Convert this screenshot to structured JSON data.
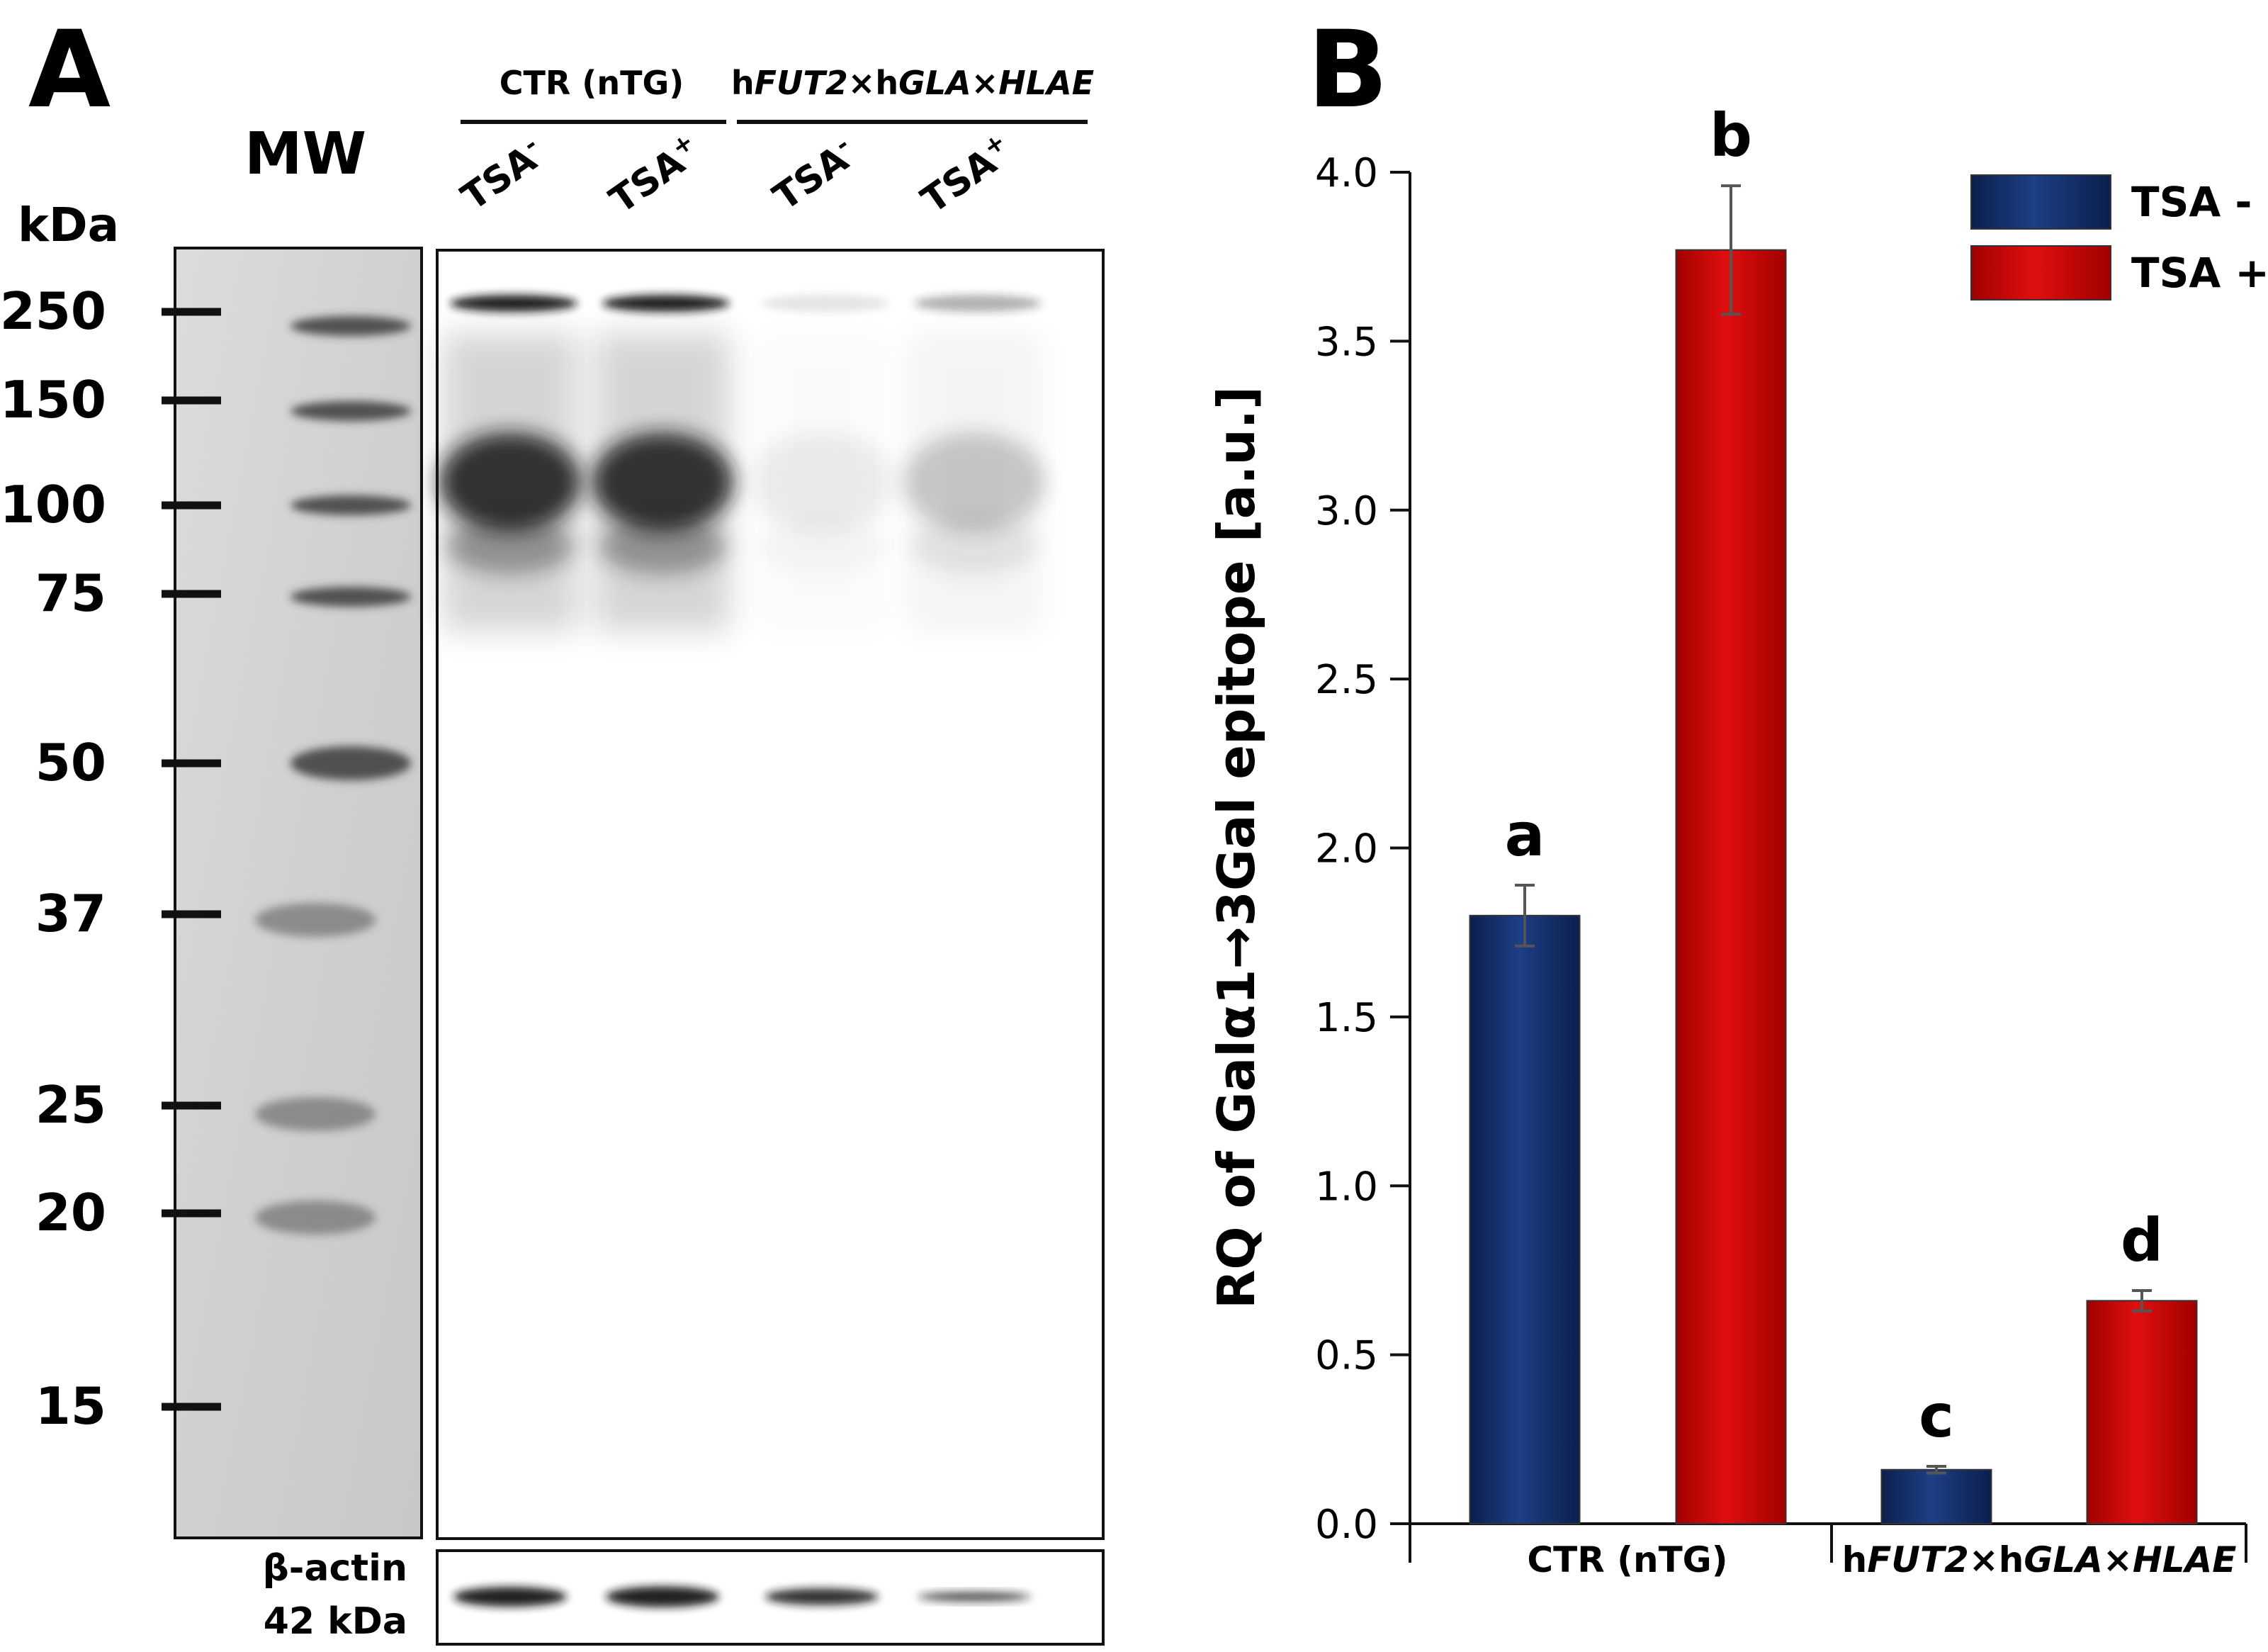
{
  "panel_a": {
    "label": "A",
    "mw_label": "MW",
    "kda_label": "kDa",
    "markers": [
      "250",
      "150",
      "100",
      "75",
      "50",
      "37",
      "25",
      "20",
      "15"
    ],
    "groups": [
      {
        "prefix": "",
        "parts": [
          {
            "t": "CTR (nTG)",
            "i": false
          }
        ]
      },
      {
        "prefix": "",
        "parts": [
          {
            "t": "h",
            "i": false
          },
          {
            "t": "FUT2",
            "i": true
          },
          {
            "t": "×h",
            "i": false
          },
          {
            "t": "GLA",
            "i": true
          },
          {
            "t": "×",
            "i": false
          },
          {
            "t": "HLAE",
            "i": true
          }
        ]
      }
    ],
    "lanes": [
      {
        "base": "TSA",
        "sup": "-"
      },
      {
        "base": "TSA",
        "sup": "+"
      },
      {
        "base": "TSA",
        "sup": "-"
      },
      {
        "base": "TSA",
        "sup": "+"
      }
    ],
    "actin_label_1": "β-actin",
    "actin_label_2": "42 kDa",
    "colors": {
      "band": "#141414",
      "ladder": "#3a3a3a",
      "mw_bg": "#d6d6d6"
    }
  },
  "panel_b": {
    "label": "B"
  },
  "chart_data": {
    "type": "bar",
    "categories": [
      "CTR (nTG)",
      "hFUT2×hGLA×HLAE"
    ],
    "category_parts": [
      [
        {
          "t": "CTR (nTG)",
          "i": false
        }
      ],
      [
        {
          "t": "h",
          "i": false
        },
        {
          "t": "FUT2",
          "i": true
        },
        {
          "t": "×h",
          "i": false
        },
        {
          "t": "GLA",
          "i": true
        },
        {
          "t": "×",
          "i": false
        },
        {
          "t": "HLAE",
          "i": true
        }
      ]
    ],
    "series": [
      {
        "name": "TSA -",
        "values": [
          1.8,
          0.16
        ],
        "errors": [
          0.09,
          0.01
        ],
        "letters": [
          "a",
          "c"
        ],
        "color": "#12306e"
      },
      {
        "name": "TSA +",
        "values": [
          3.77,
          0.66
        ],
        "errors": [
          0.19,
          0.03
        ],
        "letters": [
          "b",
          "d"
        ],
        "color": "#c40000"
      }
    ],
    "ylabel": "RQ of Galα1→3Gal epitope [a.u.]",
    "ylim": [
      0,
      4.0
    ],
    "yticks": [
      "0.0",
      "0.5",
      "1.0",
      "1.5",
      "2.0",
      "2.5",
      "3.0",
      "3.5",
      "4.0"
    ],
    "grid": false,
    "legend": "top-right"
  }
}
